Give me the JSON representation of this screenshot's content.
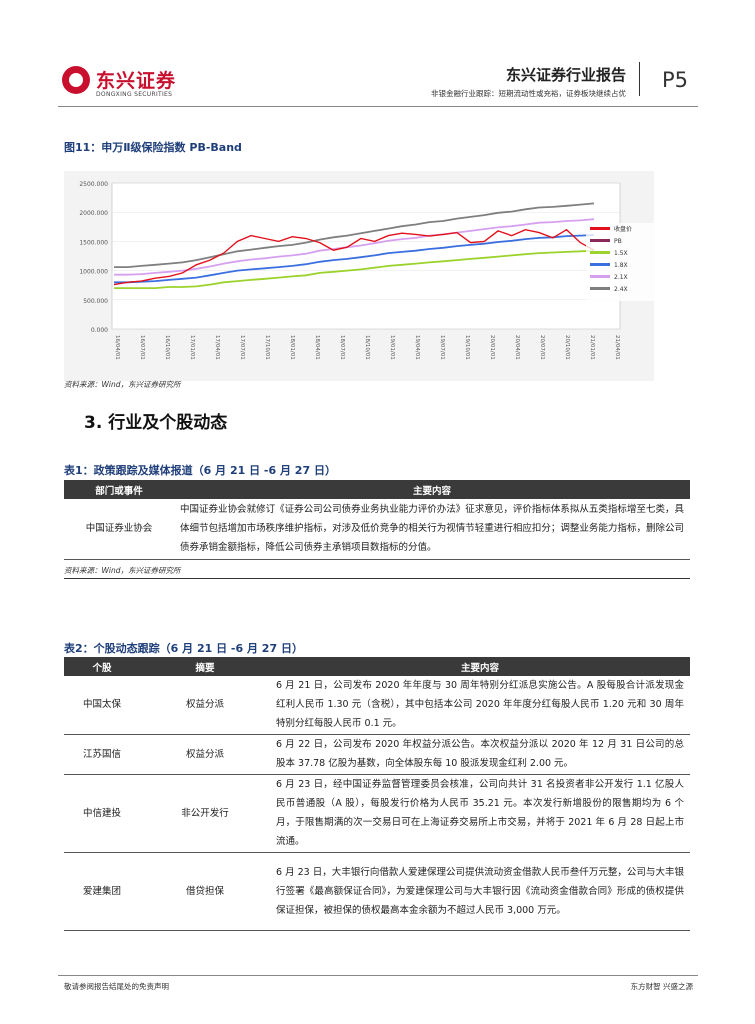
{
  "header": {
    "logo_cn": "东兴证券",
    "logo_en": "DONGXING SECURITIES",
    "title": "东兴证券行业报告",
    "subtitle": "非银金融行业跟踪：短期流动性或充裕，证券板块继续占优",
    "page": "P5"
  },
  "figure": {
    "title": "图11：申万Ⅱ级保险指数 PB-Band",
    "source": "资料来源：Wind，东兴证券研究所"
  },
  "chart_data": {
    "type": "line",
    "title": "",
    "ylim": [
      0,
      2500
    ],
    "yticks": [
      "2500.000",
      "2000.000",
      "1500.000",
      "1000.000",
      "500.000",
      "0.000"
    ],
    "xticks": [
      "16/04/01",
      "16/07/01",
      "16/10/01",
      "17/01/01",
      "17/04/01",
      "17/07/01",
      "17/10/01",
      "18/01/01",
      "18/04/01",
      "18/07/01",
      "18/10/01",
      "19/01/01",
      "19/04/01",
      "19/07/01",
      "19/10/01",
      "20/01/01",
      "20/04/01",
      "20/07/01",
      "20/10/01",
      "21/01/01",
      "21/04/01"
    ],
    "legend": [
      "收盘价",
      "PB",
      "1.5X",
      "1.8X",
      "2.1X",
      "2.4X"
    ],
    "legend_position": "right",
    "colors": [
      "#e3111b",
      "#8b2a5a",
      "#9bd22b",
      "#3a6fe0",
      "#d6a0f0",
      "#7f7f7f"
    ],
    "series": [
      {
        "name": "收盘价",
        "values": [
          760,
          800,
          820,
          870,
          900,
          960,
          1100,
          1180,
          1300,
          1500,
          1600,
          1550,
          1500,
          1580,
          1550,
          1480,
          1350,
          1400,
          1550,
          1500,
          1600,
          1640,
          1620,
          1590,
          1620,
          1650,
          1480,
          1500,
          1680,
          1600,
          1700,
          1650,
          1560,
          1700,
          1480,
          1350
        ]
      },
      {
        "name": "1.5X",
        "values": [
          700,
          700,
          700,
          700,
          720,
          720,
          730,
          760,
          800,
          820,
          840,
          860,
          880,
          900,
          920,
          960,
          980,
          1000,
          1020,
          1050,
          1080,
          1100,
          1120,
          1140,
          1160,
          1180,
          1200,
          1220,
          1240,
          1260,
          1280,
          1300,
          1310,
          1320,
          1330,
          1340
        ]
      },
      {
        "name": "1.8X",
        "values": [
          800,
          800,
          810,
          820,
          840,
          860,
          880,
          920,
          960,
          1000,
          1020,
          1040,
          1060,
          1080,
          1110,
          1150,
          1180,
          1200,
          1230,
          1260,
          1300,
          1320,
          1340,
          1370,
          1390,
          1420,
          1440,
          1460,
          1490,
          1510,
          1540,
          1560,
          1570,
          1590,
          1600,
          1610
        ]
      },
      {
        "name": "2.1X",
        "values": [
          930,
          930,
          940,
          960,
          980,
          1000,
          1030,
          1070,
          1120,
          1160,
          1190,
          1210,
          1240,
          1260,
          1290,
          1340,
          1370,
          1400,
          1430,
          1470,
          1510,
          1540,
          1560,
          1600,
          1620,
          1650,
          1680,
          1710,
          1740,
          1760,
          1790,
          1820,
          1830,
          1850,
          1860,
          1880
        ]
      },
      {
        "name": "2.4X",
        "values": [
          1060,
          1060,
          1080,
          1100,
          1120,
          1140,
          1180,
          1230,
          1280,
          1330,
          1360,
          1390,
          1420,
          1440,
          1480,
          1530,
          1570,
          1600,
          1640,
          1680,
          1720,
          1760,
          1790,
          1830,
          1850,
          1890,
          1920,
          1950,
          1990,
          2010,
          2050,
          2080,
          2090,
          2110,
          2130,
          2150
        ]
      }
    ]
  },
  "section": {
    "title": "3. 行业及个股动态"
  },
  "table1": {
    "title": "表1：政策跟踪及媒体报道（6 月 21 日 -6 月 27 日）",
    "headers": [
      "部门或事件",
      "主要内容"
    ],
    "rows": [
      {
        "dept": "中国证券业协会",
        "content": "中国证券业协会就修订《证券公司公司债券业务执业能力评价办法》征求意见，评价指标体系拟从五类指标增至七类，具体细节包括增加市场秩序维护指标，对涉及低价竞争的相关行为视情节轻重进行相应扣分；调整业务能力指标，删除公司债券承销金额指标，降低公司债券主承销项目数指标的分值。"
      }
    ],
    "source": "资料来源：Wind，东兴证券研究所"
  },
  "table2": {
    "title": "表2：个股动态跟踪（6 月 21 日 -6 月 27 日）",
    "headers": [
      "个股",
      "摘要",
      "主要内容"
    ],
    "rows": [
      {
        "stock": "中国太保",
        "summary": "权益分派",
        "content": "6 月 21 日，公司发布 2020 年年度与 30 周年特别分红派息实施公告。A 股每股合计派发现金红利人民币 1.30 元（含税），其中包括本公司 2020 年年度分红每股人民币 1.20 元和 30 周年特别分红每股人民币 0.1 元。"
      },
      {
        "stock": "江苏国信",
        "summary": "权益分派",
        "content": "6 月 22 日，公司发布 2020 年权益分派公告。本次权益分派以 2020 年 12 月 31 日公司的总股本 37.78 亿股为基数，向全体股东每 10 股派发现金红利 2.00 元。"
      },
      {
        "stock": "中信建投",
        "summary": "非公开发行",
        "content": "6 月 23 日，经中国证券监督管理委员会核准，公司向共计 31 名投资者非公开发行 1.1 亿股人民币普通股（A 股），每股发行价格为人民币 35.21 元。本次发行新增股份的限售期均为 6 个月，于限售期满的次一交易日可在上海证券交易所上市交易，并将于 2021 年 6 月 28 日起上市流通。"
      },
      {
        "stock": "爱建集团",
        "summary": "借贷担保",
        "content": "6 月 23 日，大丰银行向借款人爱建保理公司提供流动资金借款人民币叁仟万元整，公司与大丰银行签署《最高额保证合同》，为爱建保理公司与大丰银行因《流动资金借款合同》形成的债权提供保证担保，被担保的债权最高本金余额为不超过人民币 3,000 万元。"
      }
    ]
  },
  "footer": {
    "left": "敬请参阅报告结尾处的免责声明",
    "right": "东方财智  兴盛之源"
  }
}
